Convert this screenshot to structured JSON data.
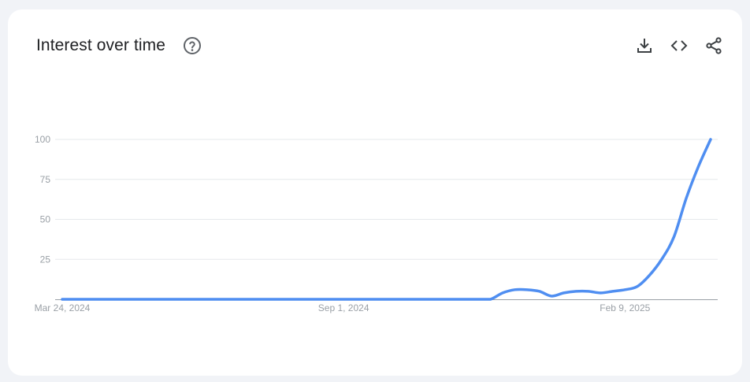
{
  "header": {
    "title": "Interest over time",
    "icons": {
      "help": "help-circle-icon",
      "download": "download-icon",
      "embed": "code-embed-icon",
      "share": "share-icon"
    }
  },
  "colors": {
    "line": "#4f8ef1",
    "grid": "#e6e8eb",
    "axis": "#9aa0a6",
    "tick": "#9aa0a6"
  },
  "chart_data": {
    "type": "line",
    "title": "Interest over time",
    "xlabel": "",
    "ylabel": "",
    "ylim": [
      0,
      100
    ],
    "yticks": [
      25,
      50,
      75,
      100
    ],
    "xtick_labels": [
      {
        "label": "Mar 24, 2024",
        "index": 0
      },
      {
        "label": "Sep 1, 2024",
        "index": 23
      },
      {
        "label": "Feb 9, 2025",
        "index": 46
      }
    ],
    "grid": true,
    "legend": "none",
    "series": [
      {
        "values": [
          0,
          0,
          0,
          0,
          0,
          0,
          0,
          0,
          0,
          0,
          0,
          0,
          0,
          0,
          0,
          0,
          0,
          0,
          0,
          0,
          0,
          0,
          0,
          0,
          0,
          0,
          0,
          0,
          0,
          0,
          0,
          0,
          0,
          0,
          0,
          0,
          0,
          0,
          0,
          0,
          0,
          0,
          0,
          0,
          0,
          0,
          0,
          0,
          0,
          0,
          0,
          0,
          0,
          0,
          0,
          0,
          0,
          0,
          0,
          0,
          0,
          0,
          0,
          0,
          0,
          0,
          0,
          0,
          0,
          0,
          0,
          0,
          0,
          0,
          0,
          0,
          0,
          0,
          0,
          0,
          0,
          0,
          0,
          0,
          0,
          0,
          0,
          0,
          0,
          0,
          0,
          0,
          0,
          0,
          0,
          0,
          0,
          0,
          0,
          0,
          0,
          0,
          0,
          0
        ]
      }
    ],
    "x_count": 54,
    "late_values": [
      0,
      4,
      6,
      6,
      5,
      2,
      4,
      5,
      5,
      4,
      5,
      6,
      8,
      15,
      25,
      39,
      63,
      83,
      100
    ]
  }
}
